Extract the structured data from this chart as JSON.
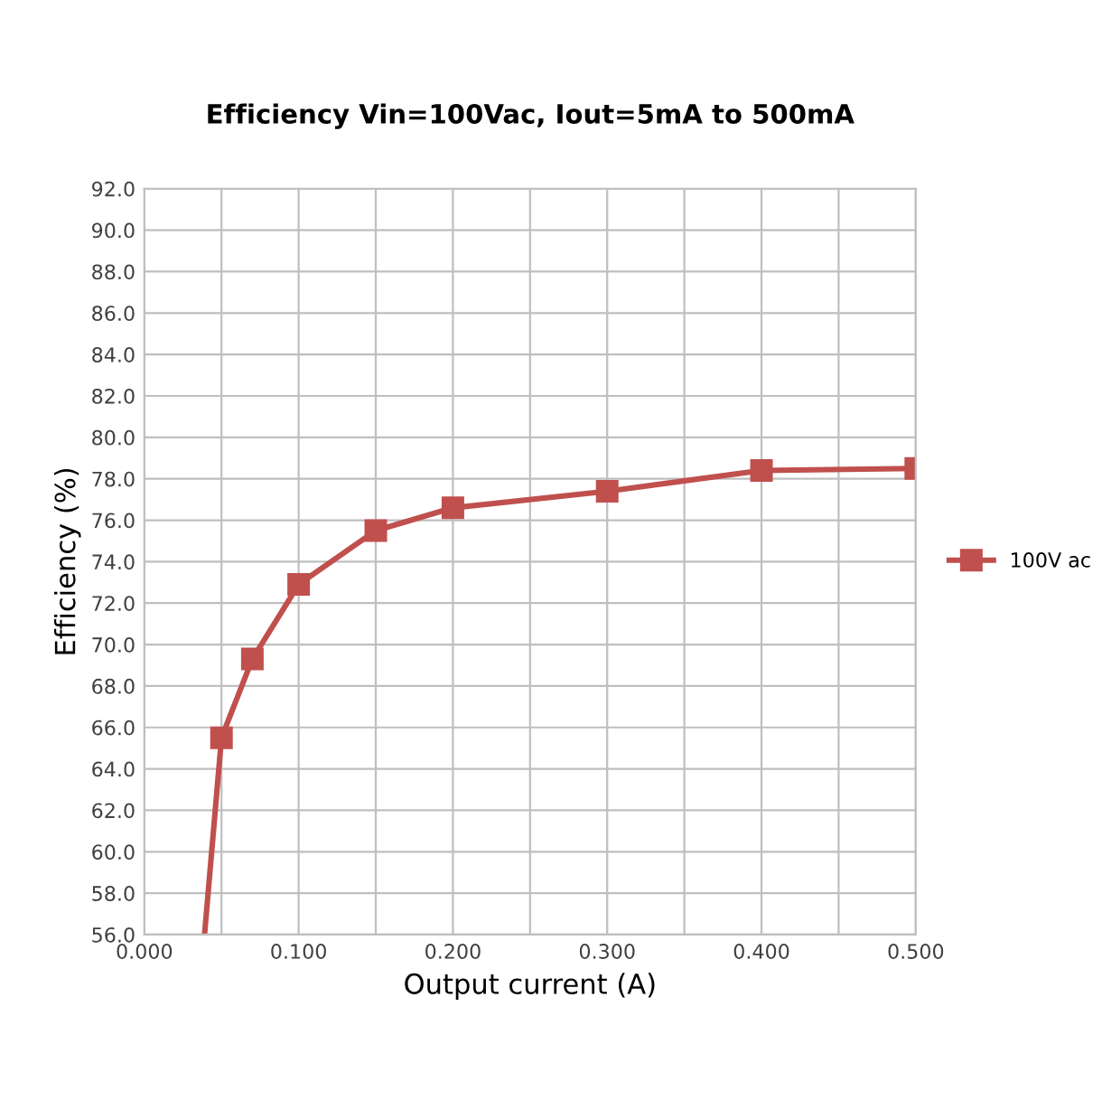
{
  "chart_data": {
    "type": "line",
    "title": "Efficiency Vin=100Vac, Iout=5mA to 500mA",
    "xlabel": "Output current (A)",
    "ylabel": "Efficiency (%)",
    "series": [
      {
        "name": "100V ac",
        "color": "#c0504d",
        "marker": "square",
        "x": [
          0.05,
          0.07,
          0.1,
          0.15,
          0.2,
          0.3,
          0.4,
          0.5
        ],
        "values": [
          65.5,
          69.3,
          72.9,
          75.5,
          76.6,
          77.4,
          78.4,
          78.5
        ]
      },
      {
        "color": "#c0504d",
        "marker": "none",
        "x": [
          0.039,
          0.05
        ],
        "values": [
          56.0,
          65.5
        ]
      }
    ],
    "xlim": [
      0,
      0.5
    ],
    "xticks": [
      {
        "value": 0,
        "label": "0.000"
      },
      {
        "value": 0.05,
        "label": null
      },
      {
        "value": 0.1,
        "label": "0.100"
      },
      {
        "value": 0.15,
        "label": null
      },
      {
        "value": 0.2,
        "label": "0.200"
      },
      {
        "value": 0.25,
        "label": null
      },
      {
        "value": 0.3,
        "label": "0.300"
      },
      {
        "value": 0.35,
        "label": null
      },
      {
        "value": 0.4,
        "label": "0.400"
      },
      {
        "value": 0.45,
        "label": null
      },
      {
        "value": 0.5,
        "label": "0.500"
      }
    ],
    "ylim": [
      56,
      92
    ],
    "yticks": [
      {
        "value": 56,
        "label": "56.0"
      },
      {
        "value": 58,
        "label": "58.0"
      },
      {
        "value": 60,
        "label": "60.0"
      },
      {
        "value": 62,
        "label": "62.0"
      },
      {
        "value": 64,
        "label": "64.0"
      },
      {
        "value": 66,
        "label": "66.0"
      },
      {
        "value": 68,
        "label": "68.0"
      },
      {
        "value": 70,
        "label": "70.0"
      },
      {
        "value": 72,
        "label": "72.0"
      },
      {
        "value": 74,
        "label": "74.0"
      },
      {
        "value": 76,
        "label": "76.0"
      },
      {
        "value": 78,
        "label": "78.0"
      },
      {
        "value": 80,
        "label": "80.0"
      },
      {
        "value": 82,
        "label": "82.0"
      },
      {
        "value": 84,
        "label": "84.0"
      },
      {
        "value": 86,
        "label": "86.0"
      },
      {
        "value": 88,
        "label": "88.0"
      },
      {
        "value": 90,
        "label": "90.0"
      },
      {
        "value": 92,
        "label": "92.0"
      }
    ],
    "grid": true,
    "legend": "right",
    "line_style": "solid"
  }
}
